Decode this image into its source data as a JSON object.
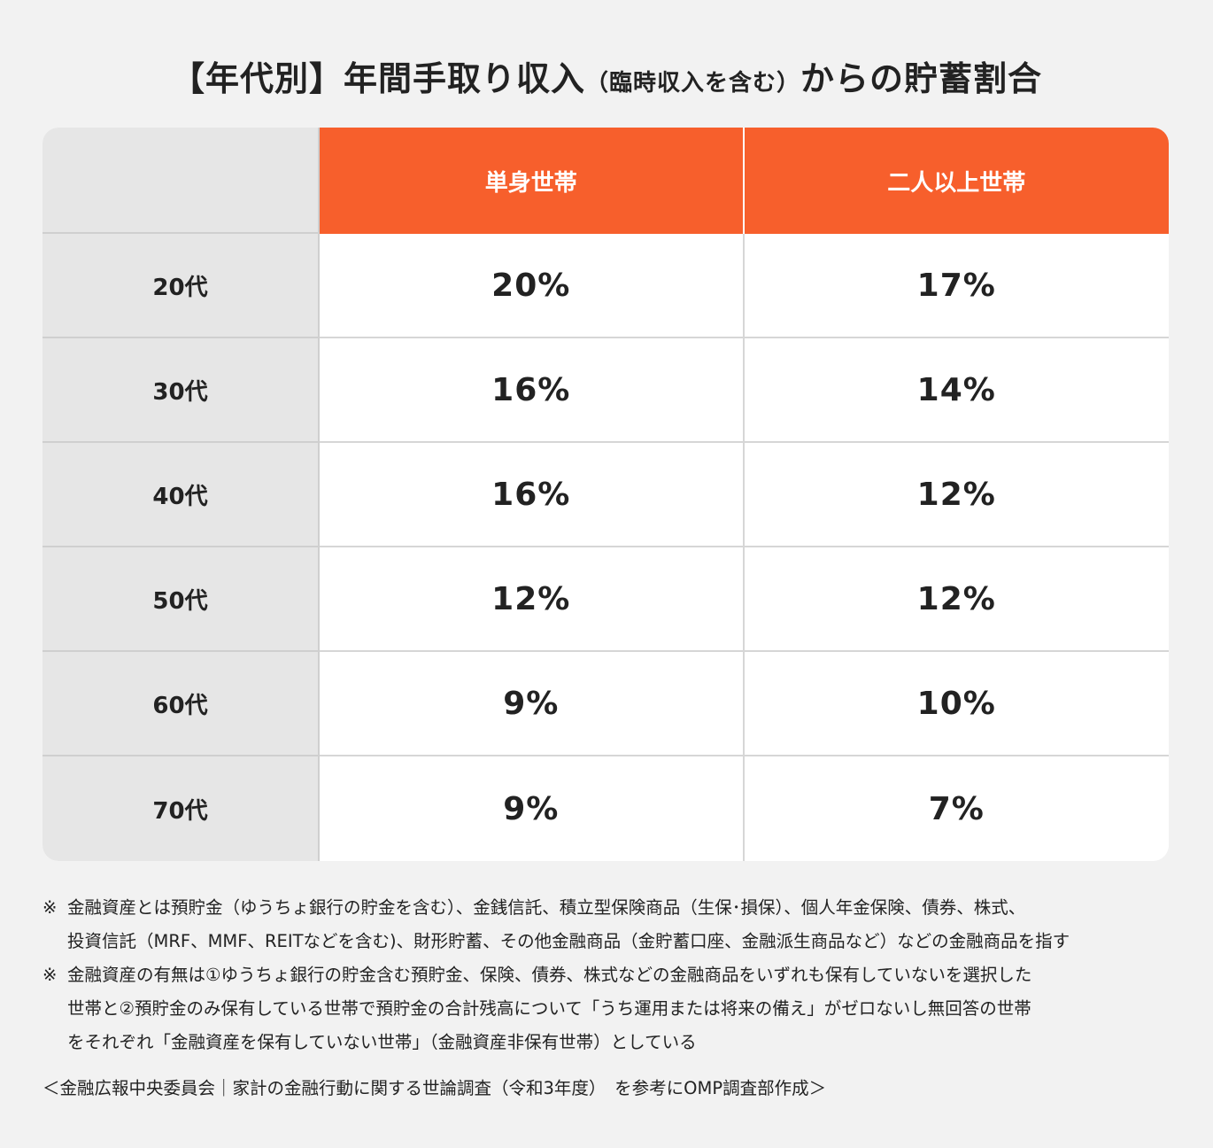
{
  "title": {
    "main_a": "【年代別】年間手取り収入",
    "main_small": "（臨時収入を含む）",
    "main_b": "からの貯蓄割合"
  },
  "chart_data": {
    "type": "table",
    "title": "【年代別】年間手取り収入（臨時収入を含む）からの貯蓄割合",
    "columns": [
      "単身世帯",
      "二人以上世帯"
    ],
    "rows": [
      {
        "label": "20代",
        "values": [
          "20%",
          "17%"
        ]
      },
      {
        "label": "30代",
        "values": [
          "16%",
          "14%"
        ]
      },
      {
        "label": "40代",
        "values": [
          "16%",
          "12%"
        ]
      },
      {
        "label": "50代",
        "values": [
          "12%",
          "12%"
        ]
      },
      {
        "label": "60代",
        "values": [
          "9%",
          "10%"
        ]
      },
      {
        "label": "70代",
        "values": [
          "9%",
          "7%"
        ]
      }
    ],
    "colors": {
      "header": "#f75f2c",
      "row_label_bg": "#e6e6e6",
      "page_bg": "#f2f2f2"
    }
  },
  "notes": [
    {
      "mark": "※",
      "text": "金融資産とは預貯金（ゆうちょ銀行の貯金を含む）、金銭信託、積立型保険商品（生保･損保）、個人年金保険、債券、株式、\n投資信託（MRF、MMF、REITなどを含む)、財形貯蓄、その他金融商品（金貯蓄口座、金融派生商品など）などの金融商品を指す"
    },
    {
      "mark": "※",
      "text": "金融資産の有無は①ゆうちょ銀行の貯金含む預貯金、保険、債券、株式などの金融商品をいずれも保有していないを選択した\n世帯と②預貯金のみ保有している世帯で預貯金の合計残高について「うち運用または将来の備え」がゼロないし無回答の世帯\nをそれぞれ「金融資産を保有していない世帯」（金融資産非保有世帯）としている"
    }
  ],
  "source": "＜金融広報中央委員会｜家計の金融行動に関する世論調査（令和3年度）　を参考にOMP調査部作成＞"
}
